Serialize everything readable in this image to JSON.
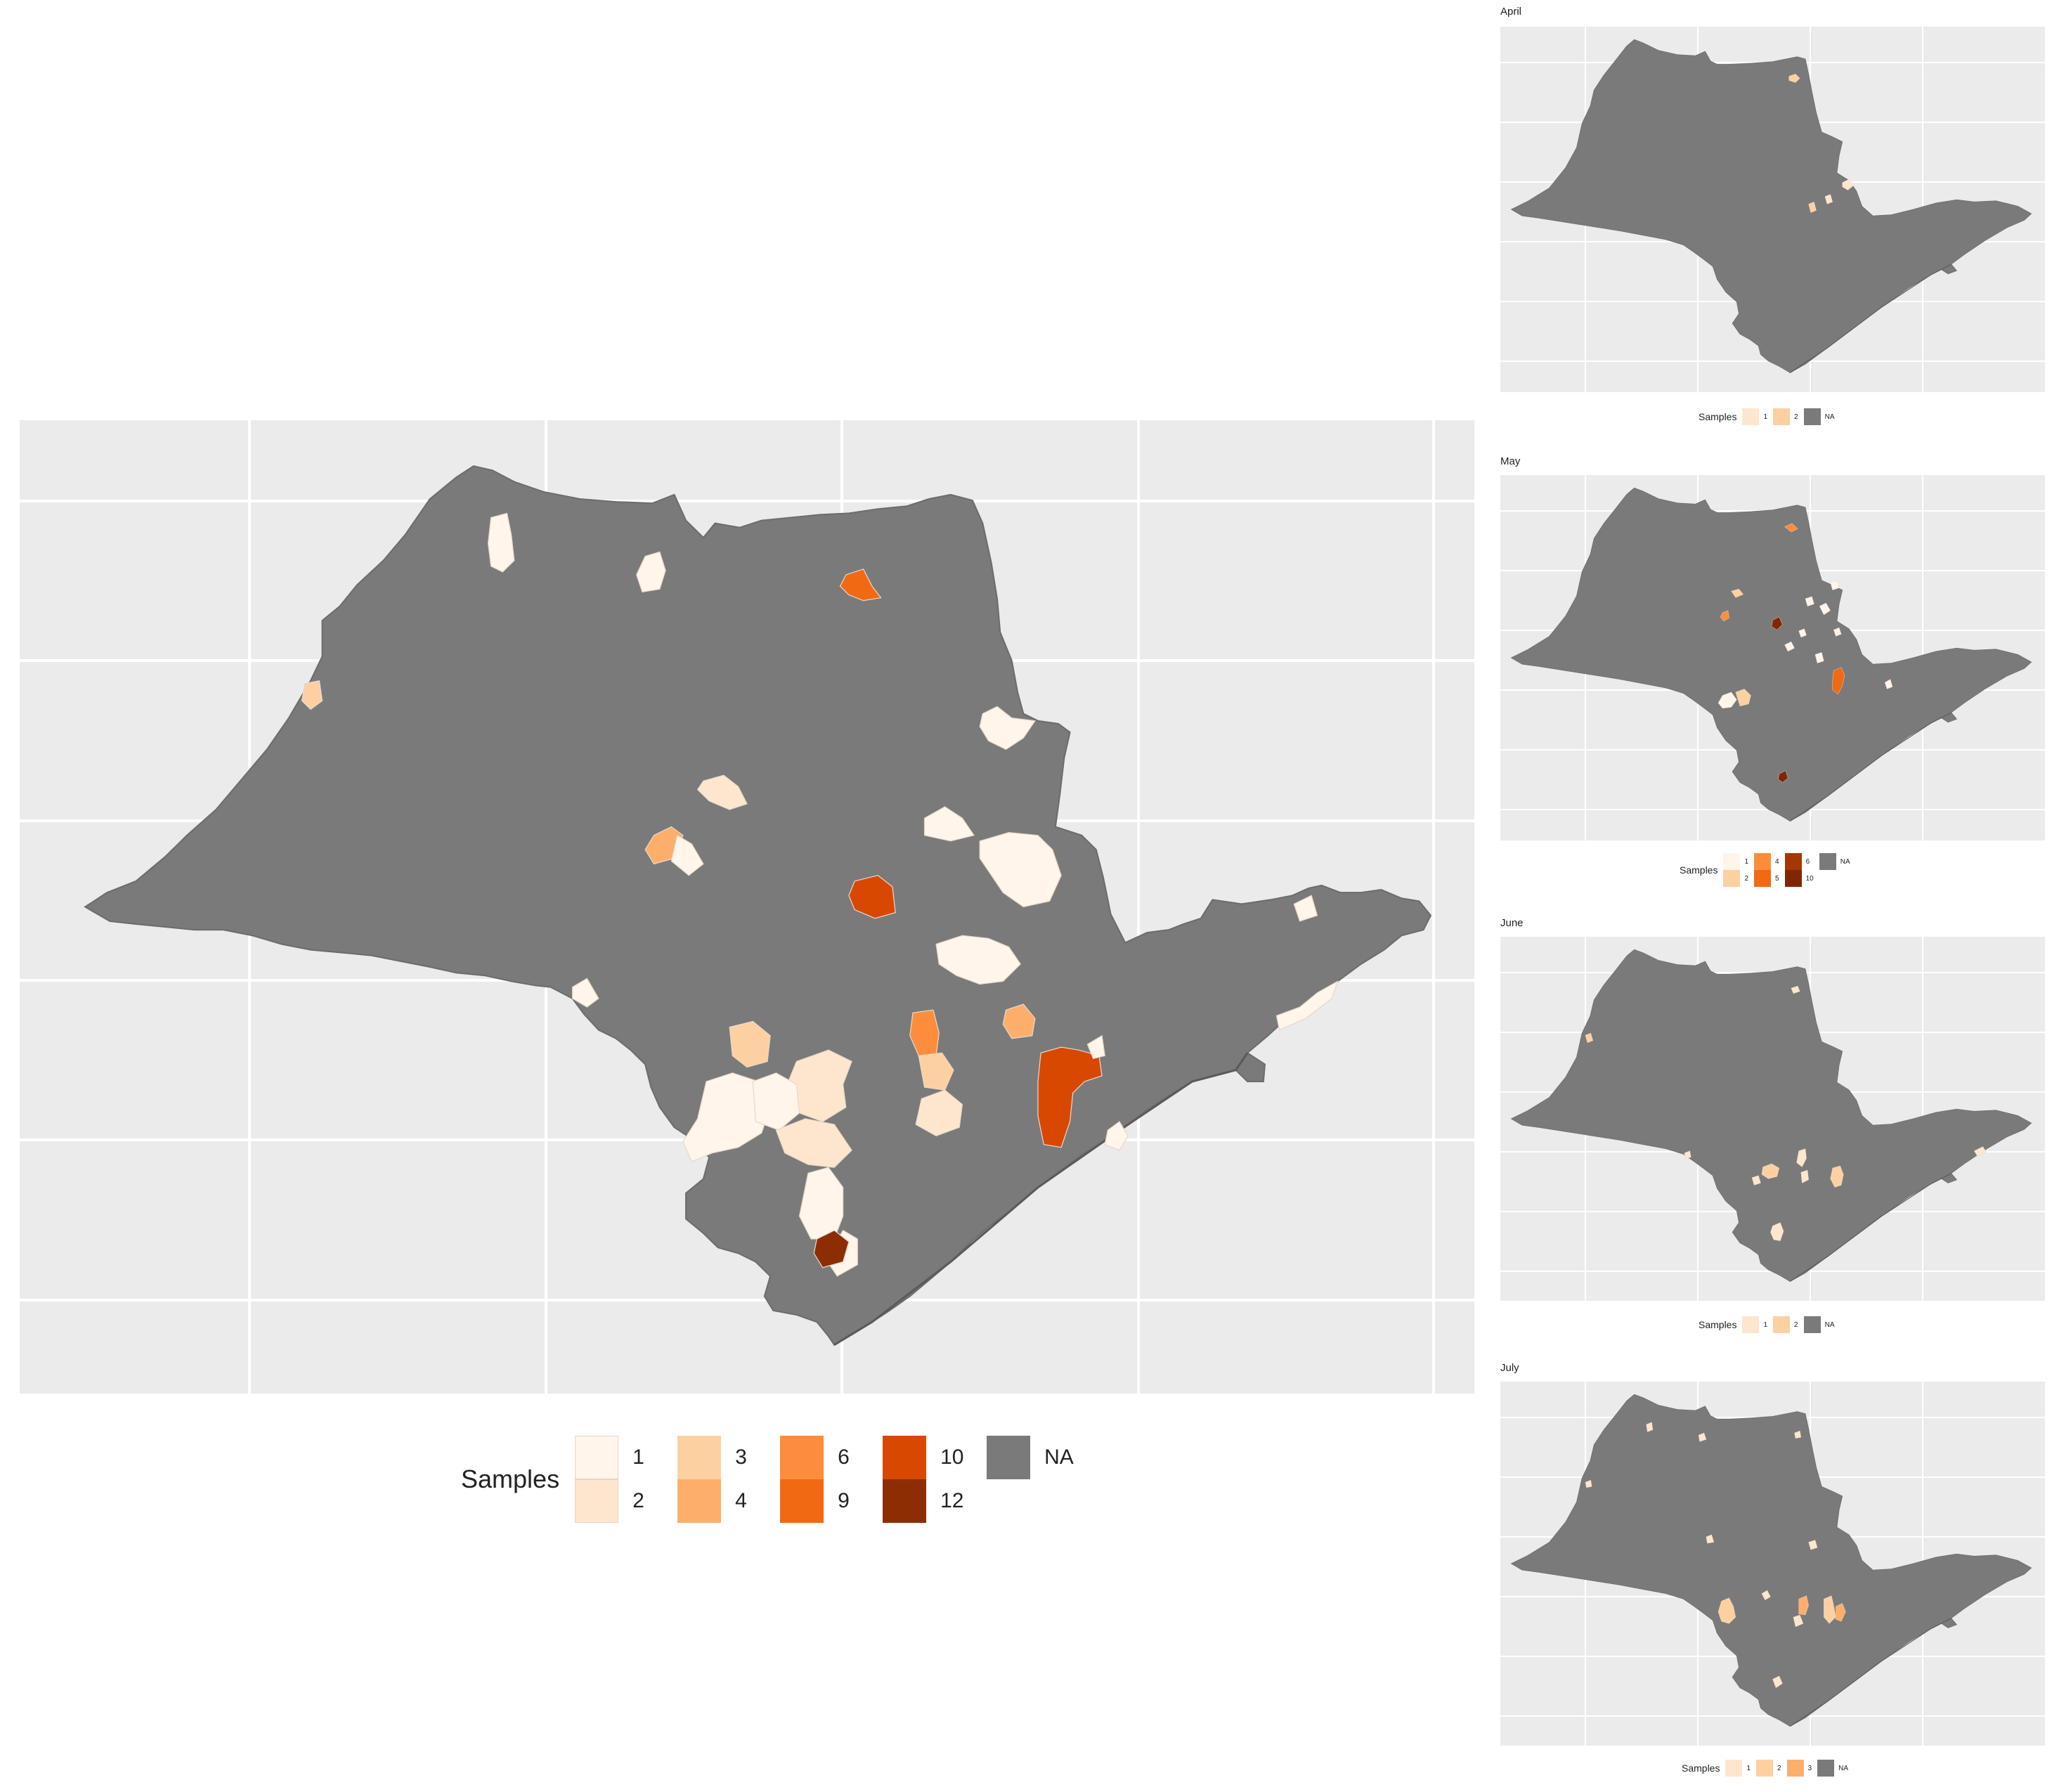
{
  "main_map": {
    "legend": {
      "title": "Samples",
      "keys": [
        {
          "label": "1",
          "color": "#fff5eb"
        },
        {
          "label": "2",
          "color": "#fee6ce"
        },
        {
          "label": "3",
          "color": "#fdd0a2"
        },
        {
          "label": "4",
          "color": "#fdae6b"
        },
        {
          "label": "6",
          "color": "#fd8d3c"
        },
        {
          "label": "9",
          "color": "#f16913"
        },
        {
          "label": "10",
          "color": "#d94801"
        },
        {
          "label": "12",
          "color": "#8c2d04"
        }
      ],
      "na": {
        "label": "NA",
        "color": "#7a7a7a"
      }
    }
  },
  "small_maps": [
    {
      "title": "April",
      "legend": {
        "title": "Samples",
        "keys": [
          {
            "label": "1",
            "color": "#fee6ce"
          },
          {
            "label": "2",
            "color": "#fdd0a2"
          }
        ],
        "na": {
          "label": "NA",
          "color": "#7a7a7a"
        }
      }
    },
    {
      "title": "May",
      "legend": {
        "title": "Samples",
        "keys": [
          {
            "label": "1",
            "color": "#fff5eb"
          },
          {
            "label": "2",
            "color": "#fdd0a2"
          },
          {
            "label": "4",
            "color": "#fd8d3c"
          },
          {
            "label": "5",
            "color": "#f16913"
          },
          {
            "label": "6",
            "color": "#a63603"
          },
          {
            "label": "10",
            "color": "#7f2704"
          }
        ],
        "na": {
          "label": "NA",
          "color": "#7a7a7a"
        }
      }
    },
    {
      "title": "June",
      "legend": {
        "title": "Samples",
        "keys": [
          {
            "label": "1",
            "color": "#fee6ce"
          },
          {
            "label": "2",
            "color": "#fdd0a2"
          }
        ],
        "na": {
          "label": "NA",
          "color": "#7a7a7a"
        }
      }
    },
    {
      "title": "July",
      "legend": {
        "title": "Samples",
        "keys": [
          {
            "label": "1",
            "color": "#fee6ce"
          },
          {
            "label": "2",
            "color": "#fdd0a2"
          },
          {
            "label": "3",
            "color": "#fdae6b"
          }
        ],
        "na": {
          "label": "NA",
          "color": "#7a7a7a"
        }
      }
    }
  ]
}
